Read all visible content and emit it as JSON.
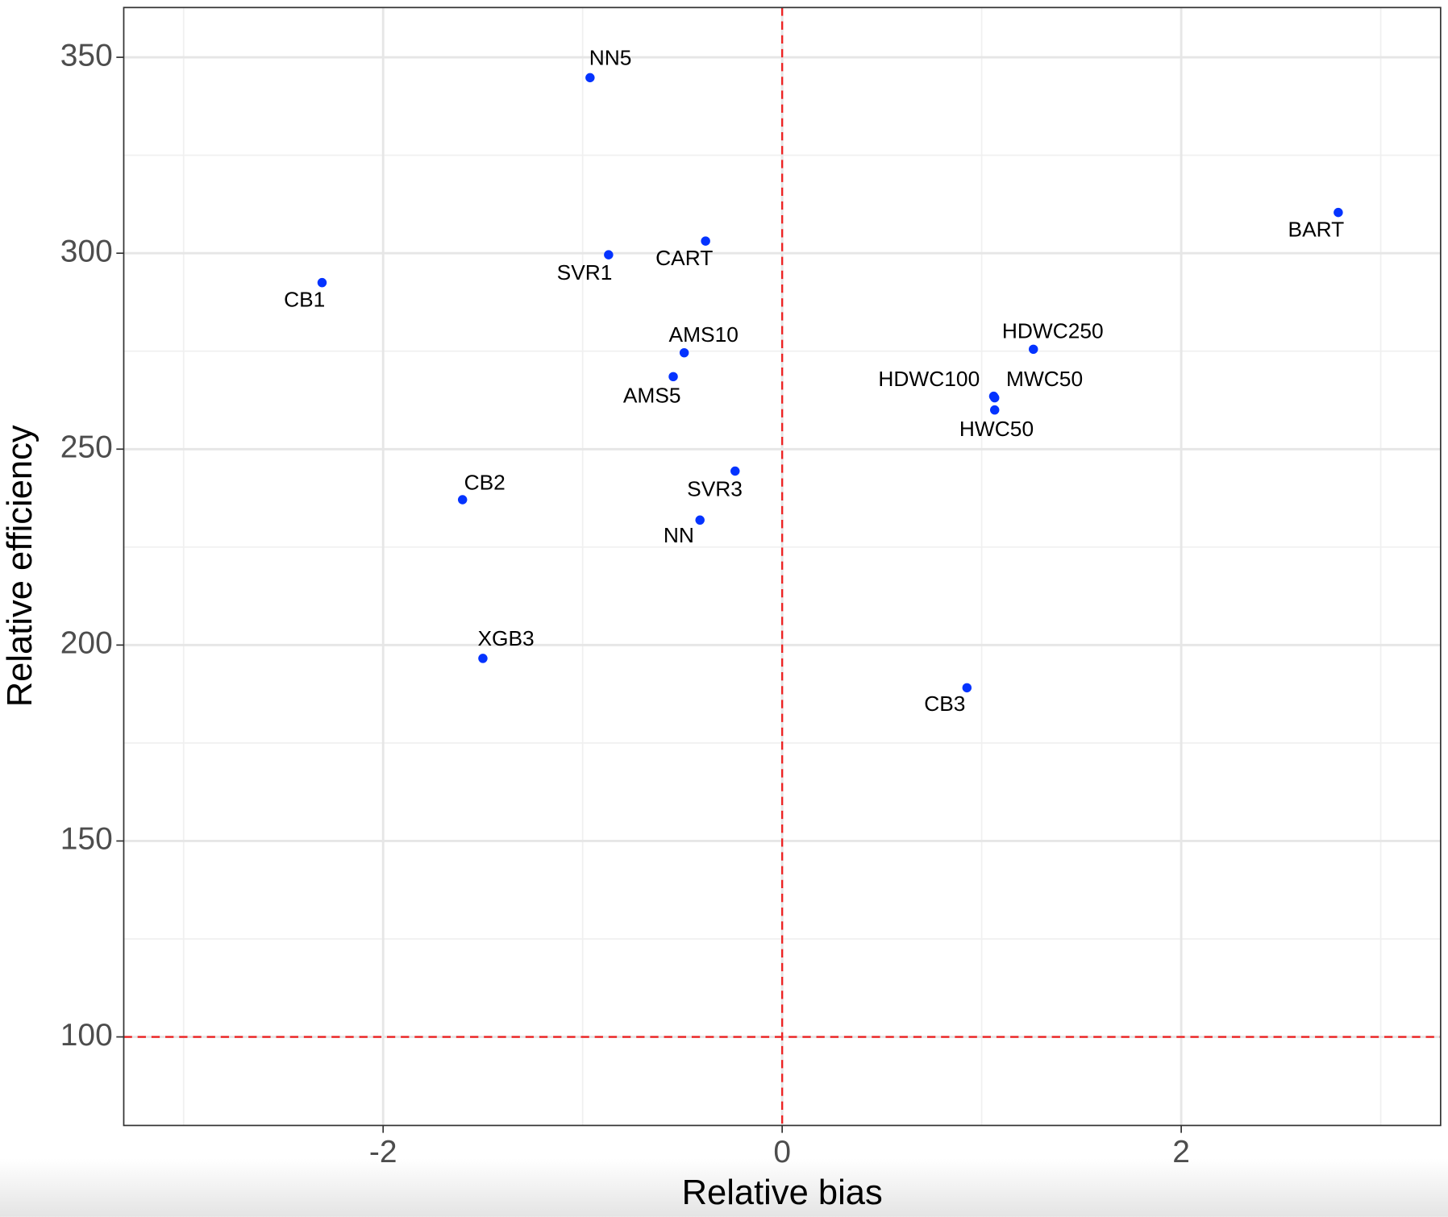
{
  "chart_data": {
    "type": "scatter",
    "xlabel": "Relative bias",
    "ylabel": "Relative efficiency",
    "labels": [
      "NN5",
      "CB1",
      "SVR1",
      "CART",
      "BART",
      "AMS10",
      "AMS5",
      "HDWC250",
      "HDWC100",
      "MWC50",
      "HWC50",
      "SVR3",
      "CB2",
      "NN",
      "XGB3",
      "CB3"
    ],
    "x": [
      -0.963,
      -2.306,
      -0.87,
      -0.384,
      2.787,
      -0.491,
      -0.546,
      1.259,
      1.06,
      1.065,
      1.065,
      -0.236,
      -1.602,
      -0.412,
      -1.5,
      0.926
    ],
    "values": [
      344.8,
      292.5,
      299.6,
      303.1,
      310.4,
      274.6,
      268.5,
      275.5,
      263.5,
      263.1,
      260.0,
      244.4,
      237.1,
      231.9,
      196.6,
      189.1
    ],
    "color": "#0433ff",
    "xlim": [
      -3.3,
      3.3
    ],
    "xticks": [
      -2,
      0,
      2
    ],
    "ylim": [
      77.4,
      362.7
    ],
    "yticks": [
      100,
      150,
      200,
      250,
      300,
      350
    ],
    "grid": true,
    "minor_grid": true,
    "vline": 0,
    "hline": 100,
    "ref_color": "#ee2222"
  }
}
